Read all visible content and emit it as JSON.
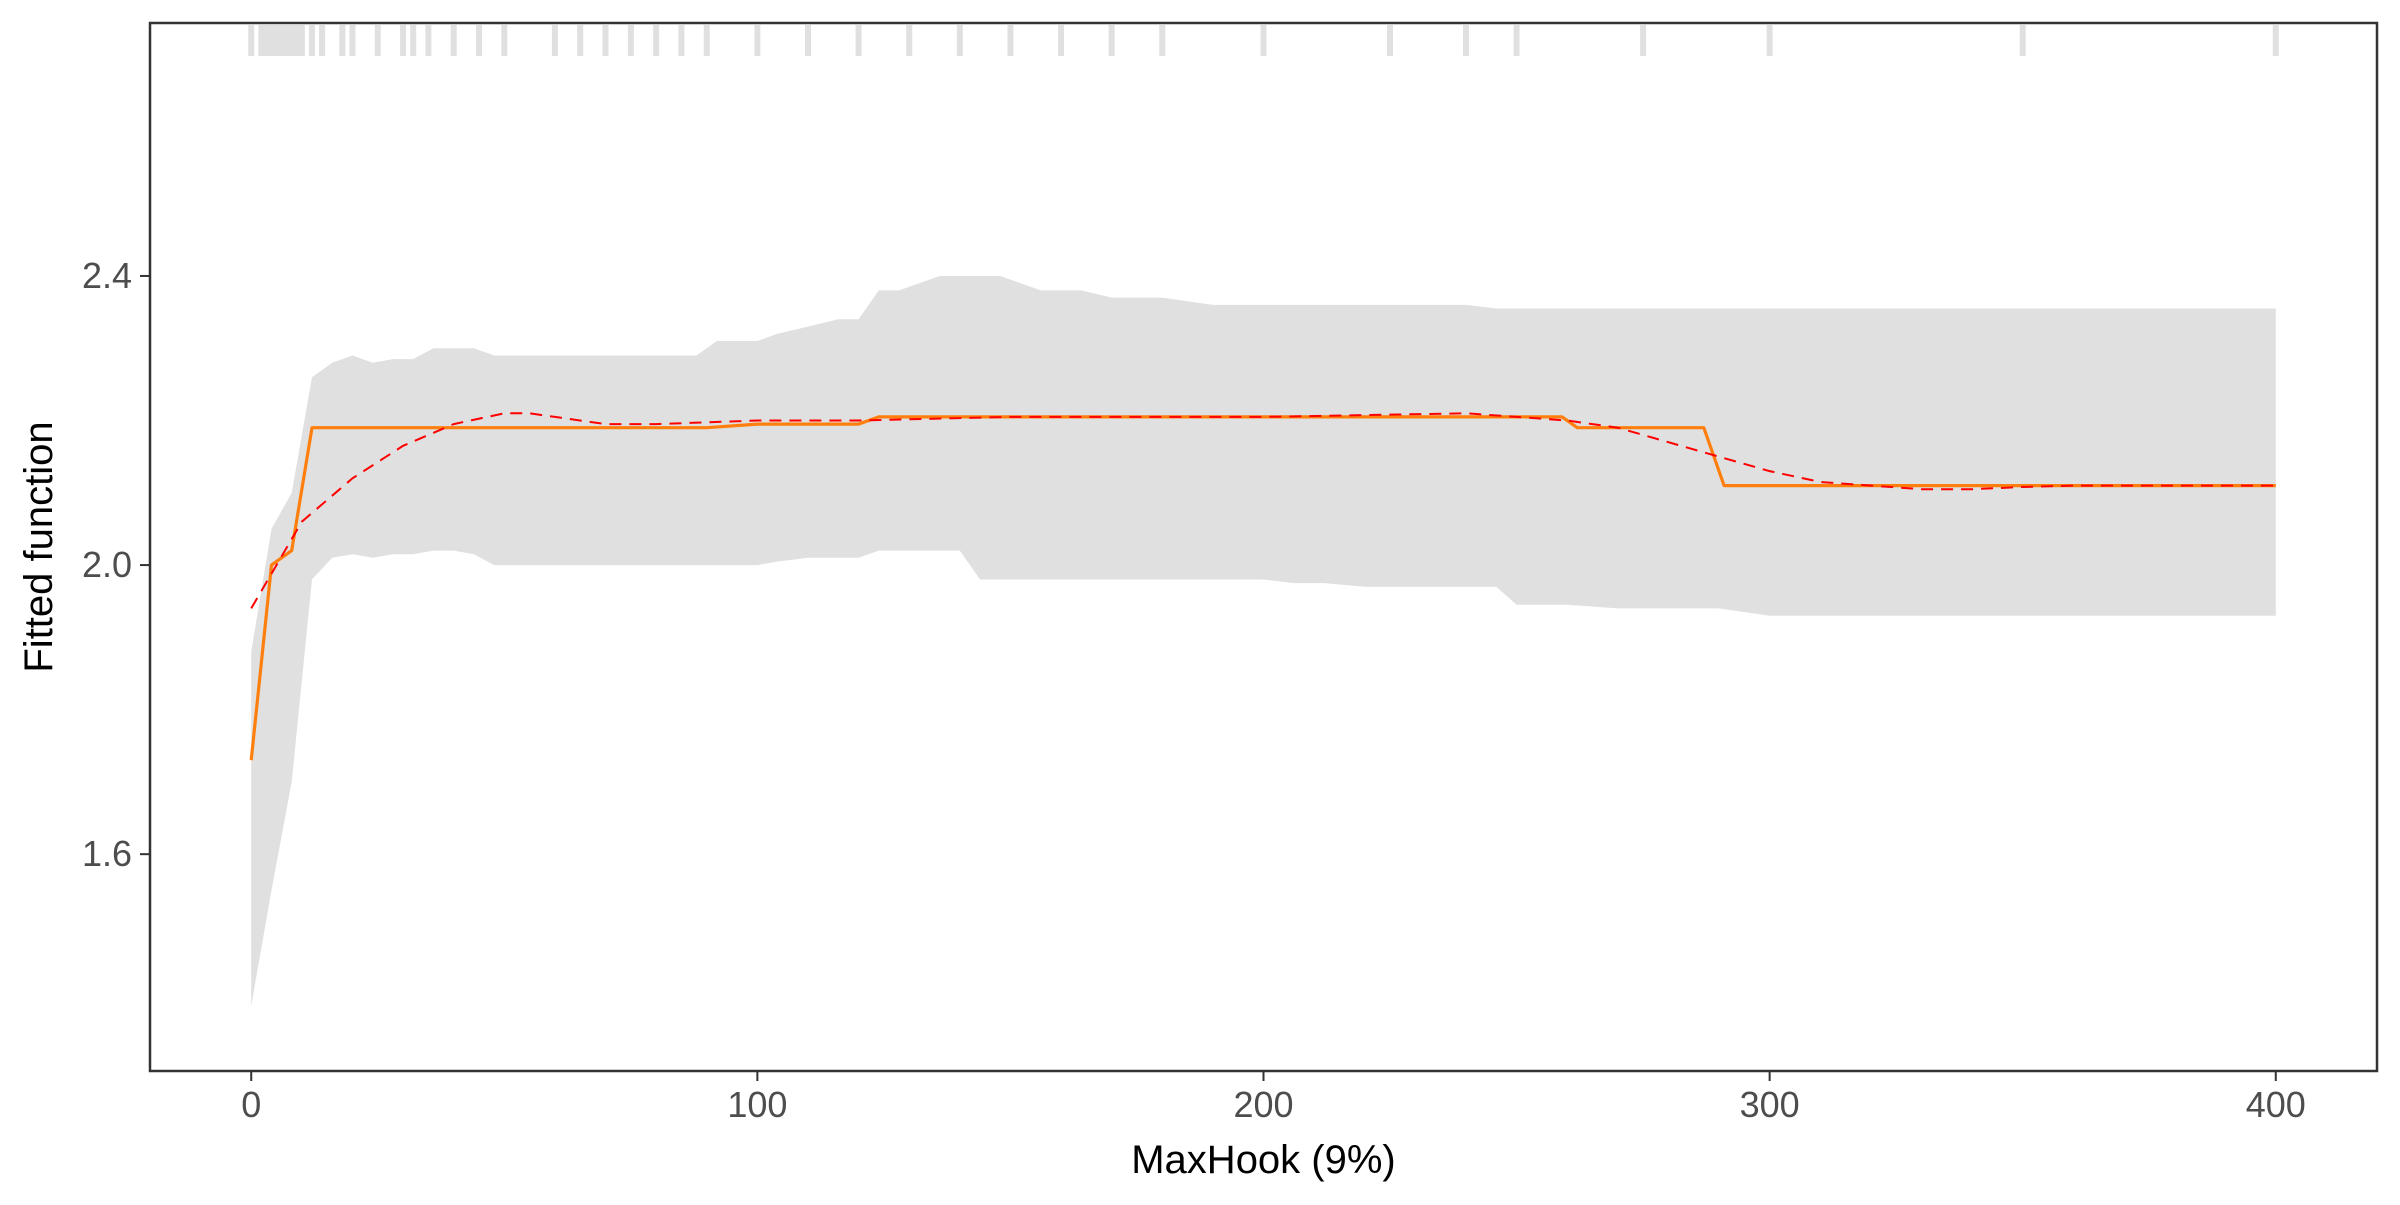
{
  "chart_data": {
    "type": "line",
    "title": "",
    "xlabel": "MaxHook  (9%)",
    "ylabel": "Fitted function",
    "xlim": [
      -20,
      420
    ],
    "ylim": [
      1.3,
      2.75
    ],
    "x_ticks": [
      0,
      100,
      200,
      300,
      400
    ],
    "y_ticks": [
      1.6,
      2.0,
      2.4
    ],
    "grid": false,
    "legend": "none",
    "colors": {
      "band": "#e0e0e0",
      "fit": "#ff7f0e",
      "smooth": "#ff0000",
      "rug": "#e0e0e0",
      "frame": "#333333",
      "axis_text": "#4d4d4d"
    },
    "rug_x": [
      0,
      2,
      3,
      4,
      5,
      6,
      7,
      8,
      9,
      10,
      12,
      14,
      18,
      20,
      25,
      30,
      32,
      35,
      40,
      45,
      50,
      60,
      65,
      70,
      75,
      80,
      85,
      90,
      100,
      110,
      120,
      130,
      140,
      150,
      160,
      170,
      180,
      200,
      225,
      240,
      250,
      275,
      300,
      350,
      400
    ],
    "series": [
      {
        "role": "confidence-band",
        "x": [
          0,
          4,
          8,
          12,
          16,
          20,
          24,
          28,
          32,
          36,
          40,
          44,
          48,
          52,
          56,
          60,
          64,
          68,
          72,
          80,
          88,
          92,
          96,
          100,
          104,
          110,
          116,
          120,
          124,
          128,
          132,
          136,
          140,
          144,
          148,
          156,
          164,
          170,
          180,
          190,
          200,
          206,
          212,
          220,
          230,
          240,
          246,
          250,
          260,
          270,
          280,
          286,
          290,
          300,
          320,
          340,
          360,
          380,
          400
        ],
        "upper": [
          1.88,
          2.05,
          2.1,
          2.26,
          2.28,
          2.29,
          2.28,
          2.285,
          2.285,
          2.3,
          2.3,
          2.3,
          2.29,
          2.29,
          2.29,
          2.29,
          2.29,
          2.29,
          2.29,
          2.29,
          2.29,
          2.31,
          2.31,
          2.31,
          2.32,
          2.33,
          2.34,
          2.34,
          2.38,
          2.38,
          2.39,
          2.4,
          2.4,
          2.4,
          2.4,
          2.38,
          2.38,
          2.37,
          2.37,
          2.36,
          2.36,
          2.36,
          2.36,
          2.36,
          2.36,
          2.36,
          2.355,
          2.355,
          2.355,
          2.355,
          2.355,
          2.355,
          2.355,
          2.355,
          2.355,
          2.355,
          2.355,
          2.355,
          2.355
        ],
        "lower": [
          1.39,
          1.55,
          1.7,
          1.98,
          2.01,
          2.015,
          2.01,
          2.015,
          2.015,
          2.02,
          2.02,
          2.015,
          2.0,
          2.0,
          2.0,
          2.0,
          2.0,
          2.0,
          2.0,
          2.0,
          2.0,
          2.0,
          2.0,
          2.0,
          2.005,
          2.01,
          2.01,
          2.01,
          2.02,
          2.02,
          2.02,
          2.02,
          2.02,
          1.98,
          1.98,
          1.98,
          1.98,
          1.98,
          1.98,
          1.98,
          1.98,
          1.975,
          1.975,
          1.97,
          1.97,
          1.97,
          1.97,
          1.945,
          1.945,
          1.94,
          1.94,
          1.94,
          1.94,
          1.93,
          1.93,
          1.93,
          1.93,
          1.93,
          1.93
        ]
      },
      {
        "role": "fitted",
        "x": [
          0,
          4,
          8,
          12,
          16,
          20,
          24,
          28,
          40,
          60,
          70,
          80,
          90,
          100,
          110,
          120,
          124,
          130,
          150,
          200,
          250,
          259,
          262,
          270,
          287,
          291,
          300,
          320,
          350,
          400
        ],
        "y": [
          1.73,
          2.0,
          2.02,
          2.19,
          2.19,
          2.19,
          2.19,
          2.19,
          2.19,
          2.19,
          2.19,
          2.19,
          2.19,
          2.195,
          2.195,
          2.195,
          2.205,
          2.205,
          2.205,
          2.205,
          2.205,
          2.205,
          2.19,
          2.19,
          2.19,
          2.11,
          2.11,
          2.11,
          2.11,
          2.11
        ]
      },
      {
        "role": "smooth",
        "x": [
          0,
          5,
          10,
          20,
          30,
          40,
          50,
          55,
          60,
          70,
          80,
          100,
          120,
          150,
          200,
          240,
          250,
          260,
          270,
          280,
          290,
          300,
          310,
          320,
          330,
          340,
          350,
          360,
          380,
          400
        ],
        "y": [
          1.94,
          2.0,
          2.06,
          2.12,
          2.165,
          2.195,
          2.21,
          2.21,
          2.205,
          2.195,
          2.195,
          2.2,
          2.2,
          2.205,
          2.205,
          2.21,
          2.205,
          2.2,
          2.19,
          2.17,
          2.15,
          2.13,
          2.115,
          2.11,
          2.105,
          2.105,
          2.108,
          2.11,
          2.11,
          2.11
        ]
      }
    ]
  }
}
